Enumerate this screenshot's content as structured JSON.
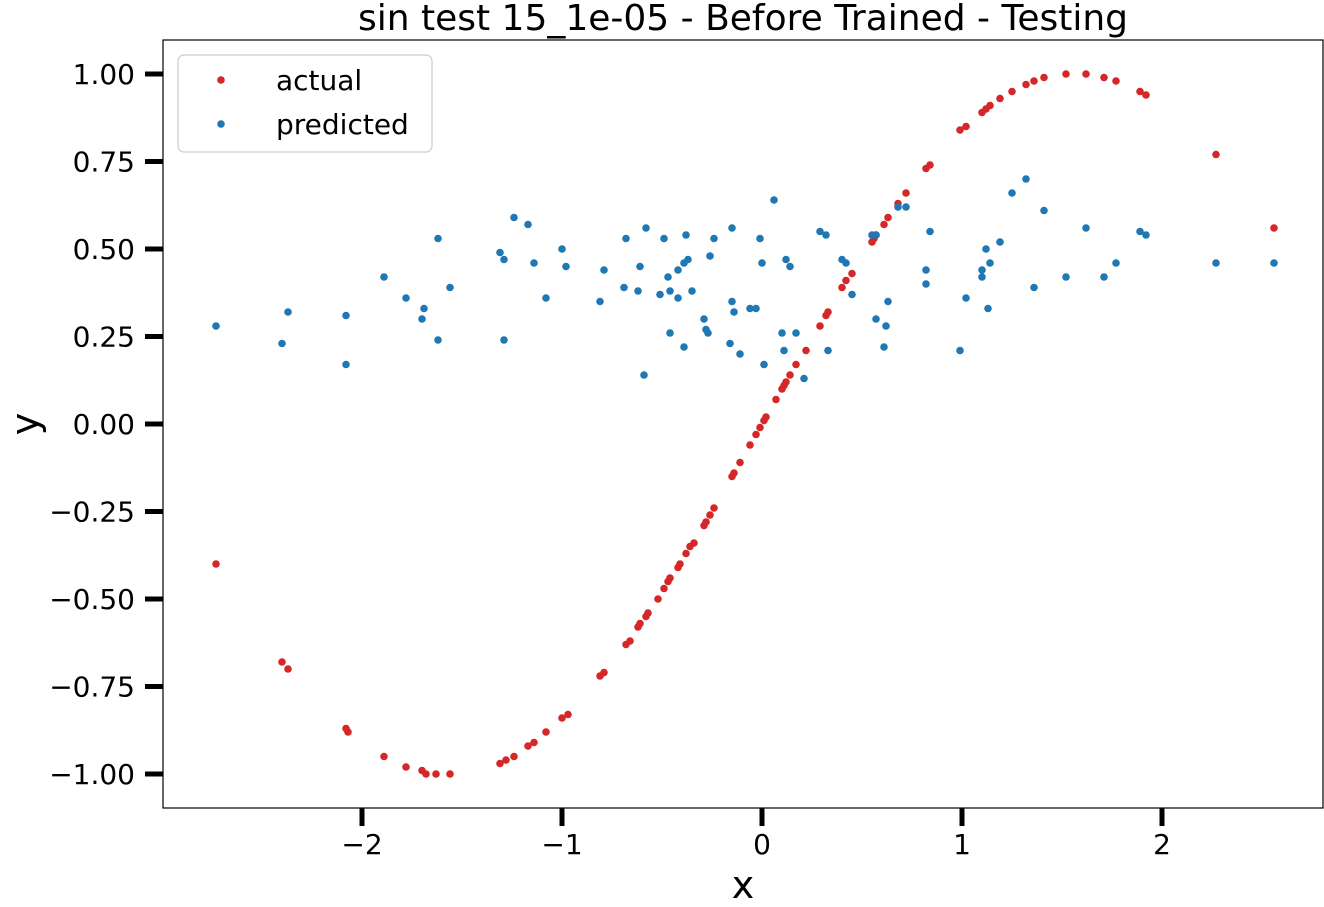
{
  "chart_data": {
    "type": "scatter",
    "title": "sin test 15_1e-05 - Before Trained - Testing",
    "xlabel": "x",
    "ylabel": "y",
    "xlim": [
      -3.0,
      2.8
    ],
    "ylim": [
      -1.1,
      1.1
    ],
    "xticks": [
      -2,
      -1,
      0,
      1,
      2
    ],
    "xtick_labels": [
      "−2",
      "−1",
      "0",
      "1",
      "2"
    ],
    "yticks": [
      1.0,
      0.75,
      0.5,
      0.25,
      0.0,
      -0.25,
      -0.5,
      -0.75,
      -1.0
    ],
    "ytick_labels": [
      "1.00",
      "0.75",
      "0.50",
      "0.25",
      "0.00",
      "−0.25",
      "−0.50",
      "−0.75",
      "−1.00"
    ],
    "grid": false,
    "legend_position": "top-left",
    "series": [
      {
        "name": "actual",
        "color": "#d62728",
        "points": [
          [
            -2.73,
            -0.4
          ],
          [
            -2.4,
            -0.68
          ],
          [
            -2.37,
            -0.7
          ],
          [
            -2.08,
            -0.87
          ],
          [
            -2.07,
            -0.88
          ],
          [
            -1.89,
            -0.95
          ],
          [
            -1.78,
            -0.98
          ],
          [
            -1.7,
            -0.99
          ],
          [
            -1.68,
            -1.0
          ],
          [
            -1.63,
            -1.0
          ],
          [
            -1.56,
            -1.0
          ],
          [
            -1.31,
            -0.97
          ],
          [
            -1.28,
            -0.96
          ],
          [
            -1.24,
            -0.95
          ],
          [
            -1.17,
            -0.92
          ],
          [
            -1.14,
            -0.91
          ],
          [
            -1.08,
            -0.88
          ],
          [
            -1.0,
            -0.84
          ],
          [
            -0.97,
            -0.83
          ],
          [
            -0.81,
            -0.72
          ],
          [
            -0.79,
            -0.71
          ],
          [
            -0.68,
            -0.63
          ],
          [
            -0.66,
            -0.62
          ],
          [
            -0.62,
            -0.58
          ],
          [
            -0.61,
            -0.57
          ],
          [
            -0.58,
            -0.55
          ],
          [
            -0.57,
            -0.54
          ],
          [
            -0.52,
            -0.5
          ],
          [
            -0.49,
            -0.47
          ],
          [
            -0.47,
            -0.45
          ],
          [
            -0.46,
            -0.44
          ],
          [
            -0.42,
            -0.41
          ],
          [
            -0.41,
            -0.4
          ],
          [
            -0.38,
            -0.37
          ],
          [
            -0.36,
            -0.35
          ],
          [
            -0.34,
            -0.34
          ],
          [
            -0.29,
            -0.29
          ],
          [
            -0.28,
            -0.28
          ],
          [
            -0.26,
            -0.26
          ],
          [
            -0.24,
            -0.24
          ],
          [
            -0.15,
            -0.15
          ],
          [
            -0.14,
            -0.14
          ],
          [
            -0.11,
            -0.11
          ],
          [
            -0.06,
            -0.06
          ],
          [
            -0.03,
            -0.03
          ],
          [
            -0.01,
            -0.01
          ],
          [
            0.01,
            0.01
          ],
          [
            0.02,
            0.02
          ],
          [
            0.07,
            0.07
          ],
          [
            0.1,
            0.1
          ],
          [
            0.11,
            0.11
          ],
          [
            0.12,
            0.12
          ],
          [
            0.14,
            0.14
          ],
          [
            0.17,
            0.17
          ],
          [
            0.22,
            0.21
          ],
          [
            0.29,
            0.28
          ],
          [
            0.32,
            0.31
          ],
          [
            0.33,
            0.32
          ],
          [
            0.4,
            0.39
          ],
          [
            0.42,
            0.41
          ],
          [
            0.45,
            0.43
          ],
          [
            0.55,
            0.52
          ],
          [
            0.56,
            0.53
          ],
          [
            0.57,
            0.54
          ],
          [
            0.61,
            0.57
          ],
          [
            0.63,
            0.59
          ],
          [
            0.68,
            0.63
          ],
          [
            0.72,
            0.66
          ],
          [
            0.82,
            0.73
          ],
          [
            0.84,
            0.74
          ],
          [
            0.99,
            0.84
          ],
          [
            1.02,
            0.85
          ],
          [
            1.1,
            0.89
          ],
          [
            1.12,
            0.9
          ],
          [
            1.14,
            0.91
          ],
          [
            1.19,
            0.93
          ],
          [
            1.25,
            0.95
          ],
          [
            1.32,
            0.97
          ],
          [
            1.36,
            0.98
          ],
          [
            1.41,
            0.99
          ],
          [
            1.52,
            1.0
          ],
          [
            1.62,
            1.0
          ],
          [
            1.71,
            0.99
          ],
          [
            1.77,
            0.98
          ],
          [
            1.89,
            0.95
          ],
          [
            1.92,
            0.94
          ],
          [
            2.27,
            0.77
          ],
          [
            2.56,
            0.56
          ]
        ]
      },
      {
        "name": "predicted",
        "color": "#1f77b4",
        "points": [
          [
            -2.73,
            0.28
          ],
          [
            -2.4,
            0.23
          ],
          [
            -2.37,
            0.32
          ],
          [
            -2.08,
            0.31
          ],
          [
            -2.08,
            0.17
          ],
          [
            -1.89,
            0.42
          ],
          [
            -1.78,
            0.36
          ],
          [
            -1.7,
            0.3
          ],
          [
            -1.69,
            0.33
          ],
          [
            -1.62,
            0.24
          ],
          [
            -1.62,
            0.53
          ],
          [
            -1.56,
            0.39
          ],
          [
            -1.31,
            0.49
          ],
          [
            -1.29,
            0.47
          ],
          [
            -1.29,
            0.24
          ],
          [
            -1.24,
            0.59
          ],
          [
            -1.17,
            0.57
          ],
          [
            -1.14,
            0.46
          ],
          [
            -1.08,
            0.36
          ],
          [
            -1.0,
            0.5
          ],
          [
            -0.98,
            0.45
          ],
          [
            -0.81,
            0.35
          ],
          [
            -0.79,
            0.44
          ],
          [
            -0.69,
            0.39
          ],
          [
            -0.68,
            0.53
          ],
          [
            -0.62,
            0.38
          ],
          [
            -0.61,
            0.45
          ],
          [
            -0.59,
            0.14
          ],
          [
            -0.58,
            0.56
          ],
          [
            -0.51,
            0.37
          ],
          [
            -0.49,
            0.53
          ],
          [
            -0.47,
            0.42
          ],
          [
            -0.46,
            0.38
          ],
          [
            -0.46,
            0.26
          ],
          [
            -0.42,
            0.44
          ],
          [
            -0.42,
            0.36
          ],
          [
            -0.39,
            0.46
          ],
          [
            -0.39,
            0.22
          ],
          [
            -0.38,
            0.54
          ],
          [
            -0.37,
            0.47
          ],
          [
            -0.35,
            0.38
          ],
          [
            -0.29,
            0.3
          ],
          [
            -0.28,
            0.27
          ],
          [
            -0.27,
            0.26
          ],
          [
            -0.26,
            0.48
          ],
          [
            -0.24,
            0.53
          ],
          [
            -0.16,
            0.23
          ],
          [
            -0.15,
            0.35
          ],
          [
            -0.15,
            0.56
          ],
          [
            -0.14,
            0.32
          ],
          [
            -0.11,
            0.2
          ],
          [
            -0.06,
            0.33
          ],
          [
            -0.03,
            0.33
          ],
          [
            -0.01,
            0.53
          ],
          [
            0.0,
            0.46
          ],
          [
            0.01,
            0.17
          ],
          [
            0.06,
            0.64
          ],
          [
            0.1,
            0.26
          ],
          [
            0.11,
            0.21
          ],
          [
            0.12,
            0.47
          ],
          [
            0.14,
            0.45
          ],
          [
            0.17,
            0.26
          ],
          [
            0.21,
            0.13
          ],
          [
            0.29,
            0.55
          ],
          [
            0.32,
            0.54
          ],
          [
            0.33,
            0.21
          ],
          [
            0.4,
            0.47
          ],
          [
            0.42,
            0.46
          ],
          [
            0.45,
            0.37
          ],
          [
            0.55,
            0.54
          ],
          [
            0.57,
            0.3
          ],
          [
            0.57,
            0.54
          ],
          [
            0.61,
            0.22
          ],
          [
            0.62,
            0.28
          ],
          [
            0.63,
            0.35
          ],
          [
            0.68,
            0.62
          ],
          [
            0.72,
            0.62
          ],
          [
            0.82,
            0.4
          ],
          [
            0.82,
            0.44
          ],
          [
            0.84,
            0.55
          ],
          [
            0.99,
            0.21
          ],
          [
            1.02,
            0.36
          ],
          [
            1.1,
            0.42
          ],
          [
            1.1,
            0.44
          ],
          [
            1.12,
            0.5
          ],
          [
            1.13,
            0.33
          ],
          [
            1.14,
            0.46
          ],
          [
            1.19,
            0.52
          ],
          [
            1.25,
            0.66
          ],
          [
            1.32,
            0.7
          ],
          [
            1.36,
            0.39
          ],
          [
            1.41,
            0.61
          ],
          [
            1.52,
            0.42
          ],
          [
            1.62,
            0.56
          ],
          [
            1.71,
            0.42
          ],
          [
            1.77,
            0.46
          ],
          [
            1.89,
            0.55
          ],
          [
            1.92,
            0.54
          ],
          [
            2.27,
            0.46
          ],
          [
            2.56,
            0.46
          ]
        ]
      }
    ]
  }
}
